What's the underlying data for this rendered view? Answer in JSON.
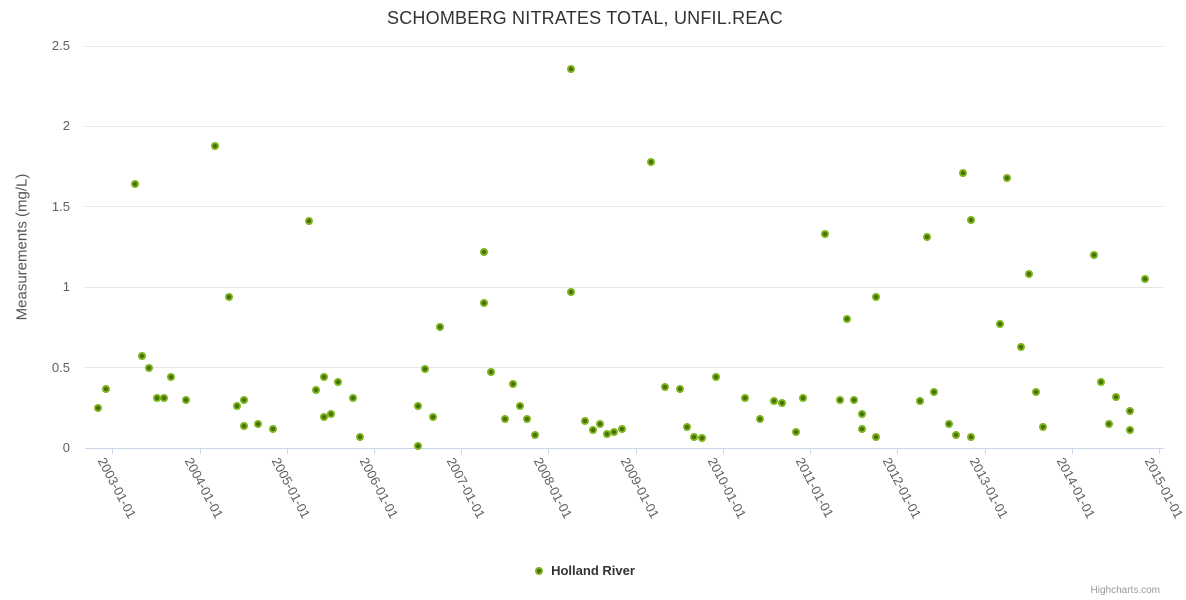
{
  "chart": {
    "credits": "Highcharts.com"
  },
  "colors": {
    "marker_outer": "#7cb41c",
    "marker_inner": "#466f04",
    "grid": "#e6e6e6",
    "axis_line": "#ccd6eb",
    "title_text": "#333333",
    "y_title_text": "#555555",
    "axis_label": "#606060",
    "y_label": "#606060",
    "legend_text": "#333333",
    "credits_text": "#999999"
  },
  "chart_data": {
    "type": "scatter",
    "title": "SCHOMBERG NITRATES TOTAL, UNFIL.REAC",
    "xlabel": "",
    "ylabel": "Measurements (mg/L)",
    "grid": "horizontal",
    "legend_position": "bottom-center",
    "xlim": [
      2002.68,
      2015.04
    ],
    "ylim": [
      0,
      2.5
    ],
    "y_ticks": [
      0,
      0.5,
      1,
      1.5,
      2,
      2.5
    ],
    "x_ticks": [
      {
        "t": 2003,
        "label": "2003-01-01"
      },
      {
        "t": 2004,
        "label": "2004-01-01"
      },
      {
        "t": 2005,
        "label": "2005-01-01"
      },
      {
        "t": 2006,
        "label": "2006-01-01"
      },
      {
        "t": 2007,
        "label": "2007-01-01"
      },
      {
        "t": 2008,
        "label": "2008-01-01"
      },
      {
        "t": 2009,
        "label": "2009-01-01"
      },
      {
        "t": 2010,
        "label": "2010-01-01"
      },
      {
        "t": 2011,
        "label": "2011-01-01"
      },
      {
        "t": 2012,
        "label": "2012-01-01"
      },
      {
        "t": 2013,
        "label": "2013-01-01"
      },
      {
        "t": 2014,
        "label": "2014-01-01"
      },
      {
        "t": 2015,
        "label": "2015-01-01"
      }
    ],
    "series": [
      {
        "name": "Holland River",
        "color": "#7cb41c",
        "points": [
          [
            "2002-11",
            0.25
          ],
          [
            "2002-12",
            0.37
          ],
          [
            "2003-04",
            1.64
          ],
          [
            "2003-05",
            0.57
          ],
          [
            "2003-06",
            0.5
          ],
          [
            "2003-07",
            0.31
          ],
          [
            "2003-08",
            0.31
          ],
          [
            "2003-09",
            0.44
          ],
          [
            "2003-11",
            0.3
          ],
          [
            "2004-03",
            1.88
          ],
          [
            "2004-05",
            0.94
          ],
          [
            "2004-06",
            0.26
          ],
          [
            "2004-07",
            0.3
          ],
          [
            "2004-07",
            0.14
          ],
          [
            "2004-09",
            0.15
          ],
          [
            "2004-11",
            0.12
          ],
          [
            "2005-04",
            1.41
          ],
          [
            "2005-05",
            0.36
          ],
          [
            "2005-06",
            0.19
          ],
          [
            "2005-06",
            0.44
          ],
          [
            "2005-07",
            0.21
          ],
          [
            "2005-08",
            0.41
          ],
          [
            "2005-10",
            0.31
          ],
          [
            "2005-11",
            0.07
          ],
          [
            "2006-07",
            0.26
          ],
          [
            "2006-07",
            0.01
          ],
          [
            "2006-08",
            0.49
          ],
          [
            "2006-09",
            0.19
          ],
          [
            "2006-10",
            0.75
          ],
          [
            "2007-04",
            0.9
          ],
          [
            "2007-04",
            1.22
          ],
          [
            "2007-05",
            0.47
          ],
          [
            "2007-07",
            0.18
          ],
          [
            "2007-08",
            0.4
          ],
          [
            "2007-09",
            0.26
          ],
          [
            "2007-10",
            0.18
          ],
          [
            "2007-11",
            0.08
          ],
          [
            "2008-04",
            2.36
          ],
          [
            "2008-04",
            0.97
          ],
          [
            "2008-06",
            0.17
          ],
          [
            "2008-07",
            0.11
          ],
          [
            "2008-08",
            0.15
          ],
          [
            "2008-09",
            0.09
          ],
          [
            "2008-10",
            0.1
          ],
          [
            "2008-11",
            0.12
          ],
          [
            "2009-03",
            1.78
          ],
          [
            "2009-05",
            0.38
          ],
          [
            "2009-07",
            0.37
          ],
          [
            "2009-08",
            0.13
          ],
          [
            "2009-09",
            0.07
          ],
          [
            "2009-10",
            0.06
          ],
          [
            "2009-12",
            0.44
          ],
          [
            "2010-04",
            0.31
          ],
          [
            "2010-06",
            0.18
          ],
          [
            "2010-08",
            0.29
          ],
          [
            "2010-09",
            0.28
          ],
          [
            "2010-11",
            0.1
          ],
          [
            "2010-12",
            0.31
          ],
          [
            "2011-03",
            1.33
          ],
          [
            "2011-05",
            0.3
          ],
          [
            "2011-06",
            0.8
          ],
          [
            "2011-07",
            0.3
          ],
          [
            "2011-08",
            0.21
          ],
          [
            "2011-08",
            0.12
          ],
          [
            "2011-10",
            0.94
          ],
          [
            "2011-10",
            0.07
          ],
          [
            "2012-04",
            0.29
          ],
          [
            "2012-05",
            1.31
          ],
          [
            "2012-06",
            0.35
          ],
          [
            "2012-08",
            0.15
          ],
          [
            "2012-09",
            0.08
          ],
          [
            "2012-10",
            1.71
          ],
          [
            "2012-11",
            0.07
          ],
          [
            "2012-11",
            1.42
          ],
          [
            "2013-03",
            0.77
          ],
          [
            "2013-04",
            1.68
          ],
          [
            "2013-06",
            0.63
          ],
          [
            "2013-07",
            1.08
          ],
          [
            "2013-08",
            0.35
          ],
          [
            "2013-09",
            0.13
          ],
          [
            "2014-04",
            1.2
          ],
          [
            "2014-05",
            0.41
          ],
          [
            "2014-06",
            0.15
          ],
          [
            "2014-07",
            0.32
          ],
          [
            "2014-09",
            0.11
          ],
          [
            "2014-09",
            0.23
          ],
          [
            "2014-11",
            1.05
          ]
        ]
      }
    ]
  }
}
